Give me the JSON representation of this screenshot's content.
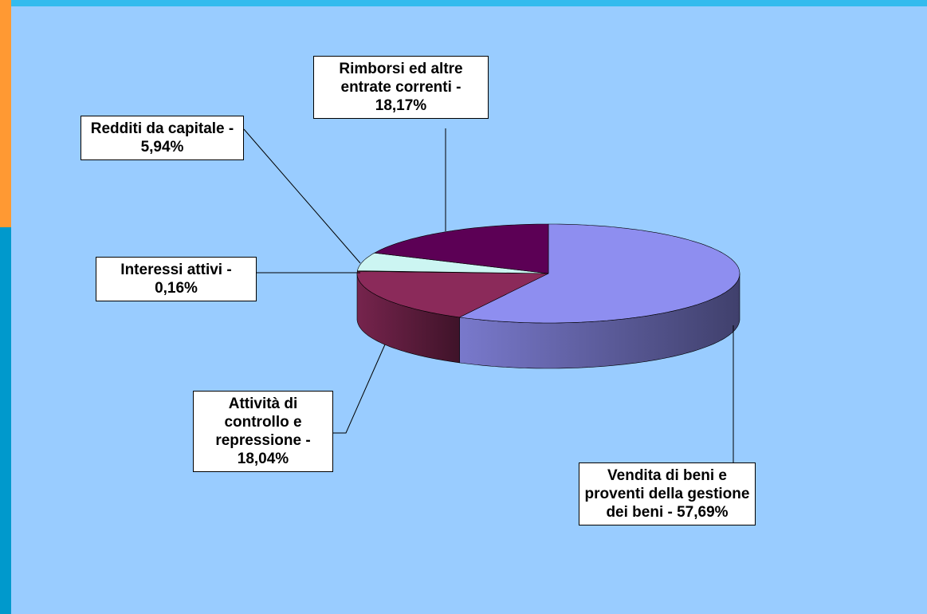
{
  "chart_data": {
    "type": "pie3d",
    "values": [
      57.69,
      18.04,
      0.16,
      5.94,
      18.17
    ],
    "value_labels": [
      "Vendita di beni e proventi della gestione dei beni - 57,69%",
      "Attività di controllo e repressione - 18,04%",
      "Interessi attivi - 0,16%",
      "Redditi da capitale - 5,94%",
      "Rimborsi ed altre entrate correnti - 18,17%"
    ],
    "colors": [
      "#8e8ef0",
      "#8b2a5a",
      "#ffffcc",
      "#ccf5f2",
      "#5c0055"
    ]
  }
}
